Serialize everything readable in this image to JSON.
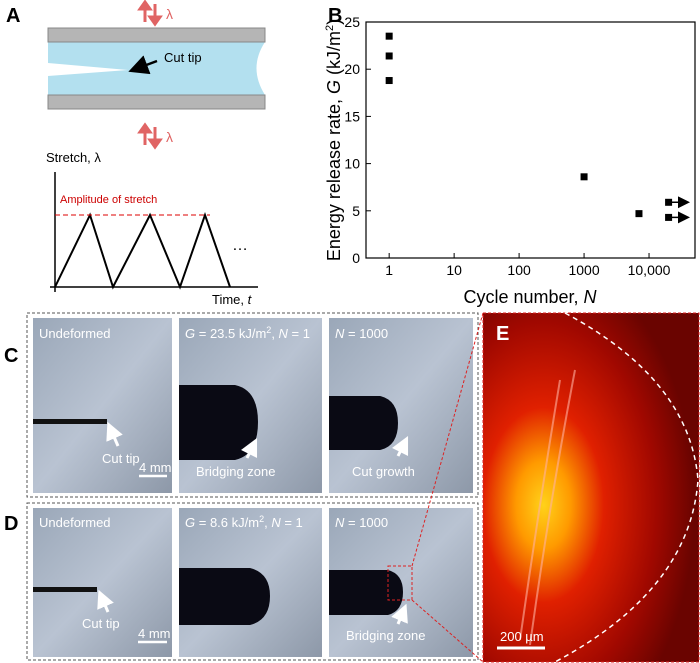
{
  "panel_a": {
    "label": "A",
    "lambda_top": "λ",
    "lambda_bottom": "λ",
    "cut_tip": "Cut tip",
    "y_label": "Stretch, λ",
    "x_label": [
      "Time, ",
      "t"
    ],
    "amplitude": "Amplitude of stretch",
    "ellipsis": "…"
  },
  "chart_data": {
    "type": "scatter",
    "panel_label": "B",
    "x_label": [
      "Cycle number, ",
      "N"
    ],
    "y_label": [
      "Energy release rate, ",
      "G",
      " (kJ/m",
      "2",
      ")"
    ],
    "x": [
      1,
      1,
      1,
      1000,
      7000,
      20000,
      20000
    ],
    "values": [
      23.5,
      21.4,
      18.8,
      8.6,
      4.7,
      5.9,
      4.3
    ],
    "arrows": [
      false,
      false,
      false,
      false,
      false,
      true,
      true
    ],
    "color": "#000000",
    "log_x": true,
    "xlim": [
      0.44,
      51000
    ],
    "xticks": [
      1,
      10,
      100,
      1000,
      {
        "value": 10000,
        "label": "10,000"
      }
    ],
    "ylim": [
      0,
      25
    ],
    "yticks": [
      0,
      5,
      10,
      15,
      20,
      25
    ]
  },
  "panel_c": {
    "label": "C",
    "photos": [
      {
        "title": [
          "Undeformed"
        ],
        "callout": "Cut tip",
        "scale": "4 mm"
      },
      {
        "title": [
          "G",
          " = 23.5 kJ/m",
          "2",
          ", ",
          "N",
          " = 1"
        ],
        "callout": "Bridging zone"
      },
      {
        "title": [
          "N",
          " = 1000"
        ],
        "callout": "Cut growth"
      }
    ]
  },
  "panel_d": {
    "label": "D",
    "photos": [
      {
        "title": [
          "Undeformed"
        ],
        "callout": "Cut tip",
        "scale": "4 mm"
      },
      {
        "title": [
          "G",
          " = 8.6 kJ/m",
          "2",
          ", ",
          "N",
          " = 1"
        ]
      },
      {
        "title": [
          "N",
          " = 1000"
        ],
        "callout": "Bridging zone"
      }
    ]
  },
  "panel_e": {
    "label": "E",
    "scale": "200 µm"
  }
}
